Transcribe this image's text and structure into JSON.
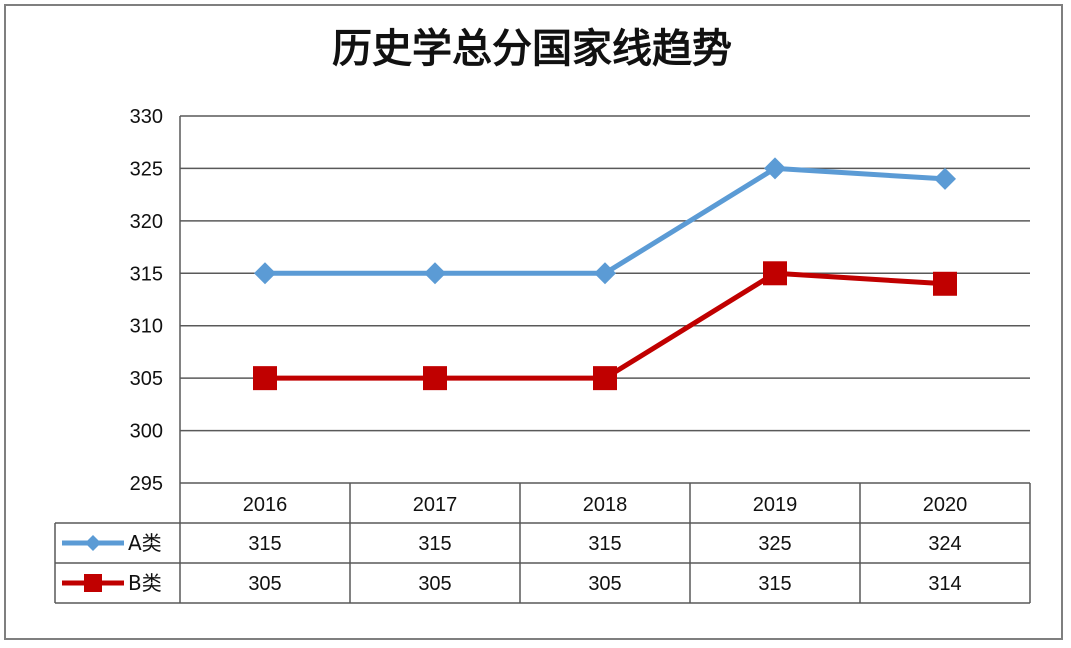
{
  "chart_data": {
    "type": "line",
    "title": "历史学总分国家线趋势",
    "categories": [
      "2016",
      "2017",
      "2018",
      "2019",
      "2020"
    ],
    "series": [
      {
        "name": "A类",
        "values": [
          315,
          315,
          315,
          325,
          324
        ],
        "color": "#5b9bd5",
        "marker": "diamond"
      },
      {
        "name": "B类",
        "values": [
          305,
          305,
          305,
          315,
          314
        ],
        "color": "#c00000",
        "marker": "square"
      }
    ],
    "ylim": [
      295,
      330
    ],
    "yticks": [
      295,
      300,
      305,
      310,
      315,
      320,
      325,
      330
    ],
    "grid": true,
    "legend": "data-table",
    "xlabel": "",
    "ylabel": ""
  }
}
